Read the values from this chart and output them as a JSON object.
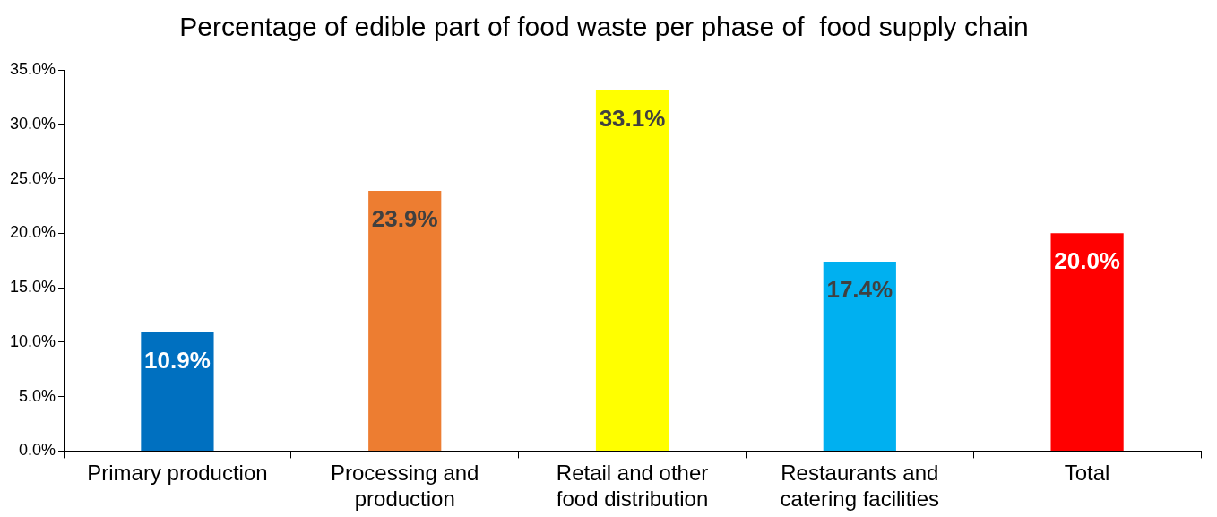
{
  "chart_data": {
    "type": "bar",
    "title": "Percentage of edible part of food waste per phase of  food supply chain",
    "categories": [
      "Primary production",
      "Processing and production",
      "Retail and other food distribution",
      "Restaurants and catering facilities",
      "Total"
    ],
    "values": [
      10.9,
      23.9,
      33.1,
      17.4,
      20.0
    ],
    "colors": [
      "#0070c0",
      "#ed7d31",
      "#ffff00",
      "#00b0f0",
      "#ff0000"
    ],
    "value_labels": [
      "10.9%",
      "23.9%",
      "33.1%",
      "17.4%",
      "20.0%"
    ],
    "ylim": [
      0,
      35
    ],
    "yticks": [
      {
        "value": 0,
        "label": "0.0%"
      },
      {
        "value": 5,
        "label": "5.0%"
      },
      {
        "value": 10,
        "label": "10.0%"
      },
      {
        "value": 15,
        "label": "15.0%"
      },
      {
        "value": 20,
        "label": "20.0%"
      },
      {
        "value": 25,
        "label": "25.0%"
      },
      {
        "value": 30,
        "label": "30.0%"
      },
      {
        "value": 35,
        "label": "35.0%"
      }
    ],
    "grid": false,
    "legend": false
  }
}
